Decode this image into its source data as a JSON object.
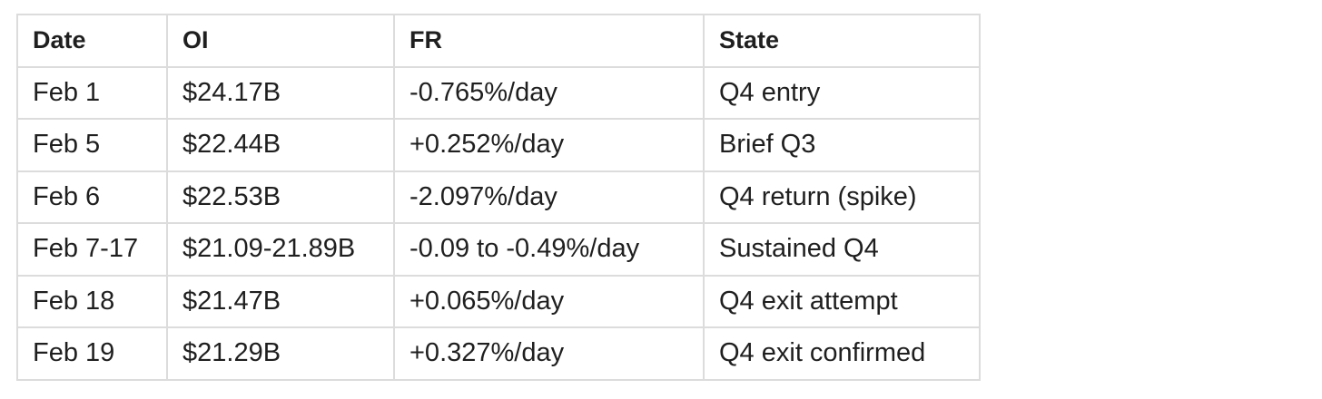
{
  "table": {
    "header": [
      "Date",
      "OI",
      "FR",
      "State"
    ],
    "rows": [
      [
        "Feb 1",
        "$24.17B",
        "-0.765%/day",
        "Q4 entry"
      ],
      [
        "Feb 5",
        "$22.44B",
        "+0.252%/day",
        "Brief Q3"
      ],
      [
        "Feb 6",
        "$22.53B",
        "-2.097%/day",
        "Q4 return (spike)"
      ],
      [
        "Feb 7-17",
        "$21.09-21.89B",
        "-0.09 to -0.49%/day",
        "Sustained Q4"
      ],
      [
        "Feb 18",
        "$21.47B",
        "+0.065%/day",
        "Q4 exit attempt"
      ],
      [
        "Feb 19",
        "$21.29B",
        "+0.327%/day",
        "Q4 exit confirmed"
      ]
    ]
  }
}
